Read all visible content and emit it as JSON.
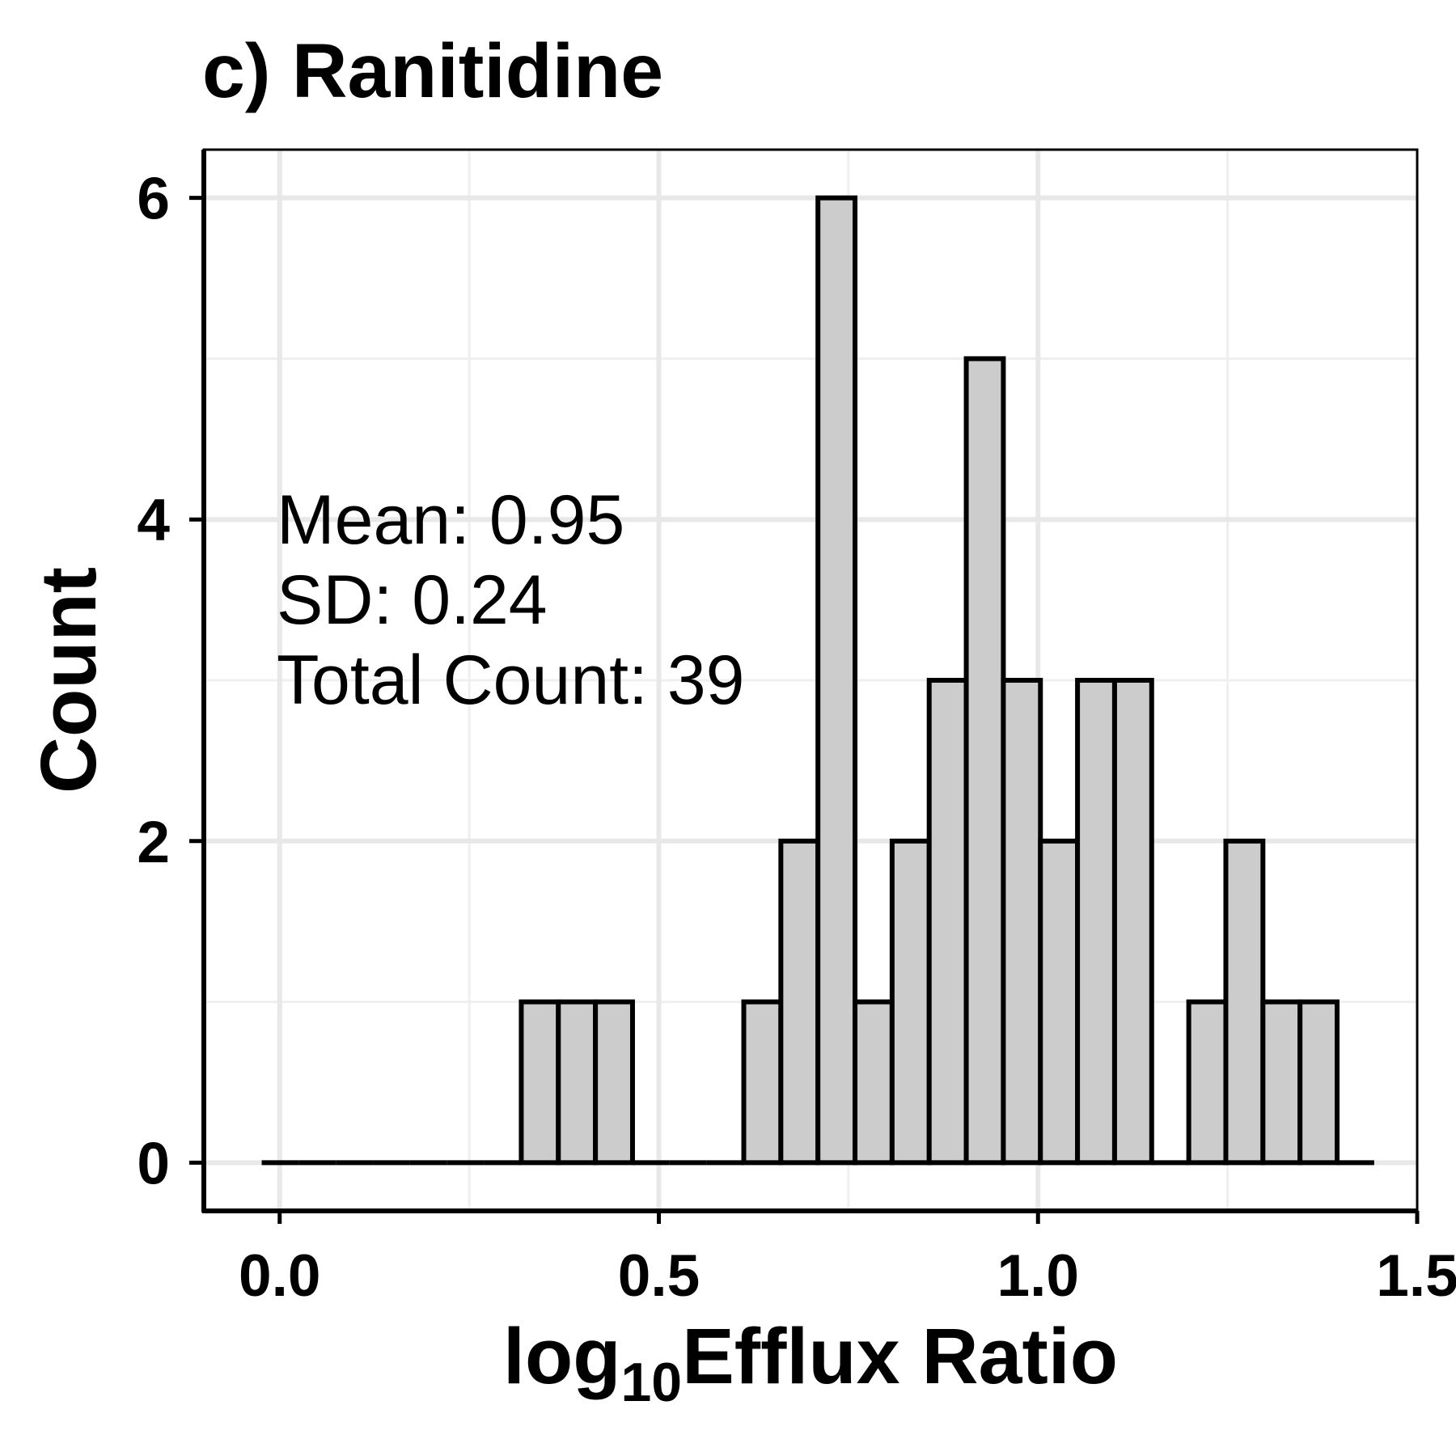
{
  "chart_data": {
    "type": "bar",
    "title": "c) Ranitidine",
    "xlabel_main": "log",
    "xlabel_sub": "10",
    "xlabel_rest": "Efflux Ratio",
    "ylabel": "Count",
    "xlim": [
      -0.1,
      1.5
    ],
    "ylim": [
      -0.3,
      6.3
    ],
    "x_ticks": [
      {
        "value": 0.0,
        "label": "0.0"
      },
      {
        "value": 0.5,
        "label": "0.5"
      },
      {
        "value": 1.0,
        "label": "1.0"
      },
      {
        "value": 1.5,
        "label": "1.5"
      }
    ],
    "y_ticks": [
      {
        "value": 0,
        "label": "0"
      },
      {
        "value": 2,
        "label": "2"
      },
      {
        "value": 4,
        "label": "4"
      },
      {
        "value": 6,
        "label": "6"
      }
    ],
    "bin_width": 0.0489,
    "bin_starts": [
      -0.0237,
      0.0252,
      0.0741,
      0.123,
      0.1719,
      0.2208,
      0.2697,
      0.3186,
      0.3675,
      0.4164,
      0.4653,
      0.5142,
      0.5631,
      0.612,
      0.6609,
      0.7098,
      0.7587,
      0.8076,
      0.8565,
      0.9054,
      0.9543,
      1.0032,
      1.0521,
      1.101,
      1.1499,
      1.1988,
      1.2477,
      1.2966,
      1.3455,
      1.3944
    ],
    "counts": [
      0,
      0,
      0,
      0,
      0,
      0,
      0,
      1,
      1,
      1,
      0,
      0,
      0,
      1,
      2,
      6,
      1,
      2,
      3,
      5,
      3,
      2,
      3,
      3,
      0,
      1,
      2,
      1,
      1,
      0
    ],
    "grid": true,
    "annotations": [
      "Mean: 0.95",
      "SD: 0.24",
      "Total Count: 39"
    ]
  }
}
